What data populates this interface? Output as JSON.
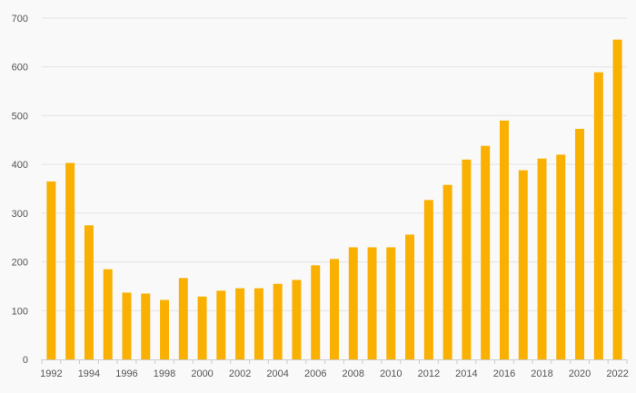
{
  "chart_data": {
    "type": "bar",
    "categories": [
      "1992",
      "1993",
      "1994",
      "1995",
      "1996",
      "1997",
      "1998",
      "1999",
      "2000",
      "2001",
      "2002",
      "2003",
      "2004",
      "2005",
      "2006",
      "2007",
      "2008",
      "2009",
      "2010",
      "2011",
      "2012",
      "2013",
      "2014",
      "2015",
      "2016",
      "2017",
      "2018",
      "2019",
      "2020",
      "2021",
      "2022"
    ],
    "values": [
      365,
      403,
      275,
      185,
      137,
      135,
      122,
      167,
      129,
      141,
      146,
      146,
      155,
      163,
      193,
      206,
      230,
      230,
      230,
      256,
      327,
      358,
      410,
      438,
      490,
      388,
      412,
      420,
      473,
      589,
      656
    ],
    "x_tick_labels": [
      "1992",
      "1994",
      "1996",
      "1998",
      "2000",
      "2002",
      "2004",
      "2006",
      "2008",
      "2010",
      "2012",
      "2014",
      "2016",
      "2018",
      "2020",
      "2022"
    ],
    "y_ticks": [
      0,
      100,
      200,
      300,
      400,
      500,
      600,
      700
    ],
    "ylim": [
      0,
      700
    ],
    "title": "",
    "xlabel": "",
    "ylabel": "",
    "grid": true,
    "bar_color": "#f9b000"
  }
}
